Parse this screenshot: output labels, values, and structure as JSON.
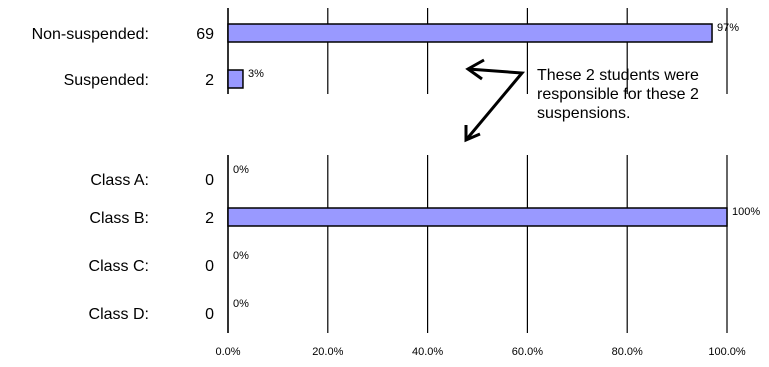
{
  "chart_data": {
    "type": "bar",
    "orientation": "horizontal",
    "categories": [
      "Non-suspended:",
      "Suspended:",
      "Class A:",
      "Class B:",
      "Class C:",
      "Class D:"
    ],
    "counts": [
      "69",
      "2",
      "0",
      "2",
      "0",
      "0"
    ],
    "values": [
      97,
      3,
      0,
      100,
      0,
      0
    ],
    "value_labels": [
      "97%",
      "3%",
      "0%",
      "100%",
      "0%",
      "0%"
    ],
    "xlim": [
      0,
      100
    ],
    "x_ticks": [
      "0.0%",
      "20.0%",
      "40.0%",
      "60.0%",
      "80.0%",
      "100.0%"
    ],
    "grid": "vertical",
    "bar_color": "#9999ff",
    "annotation": {
      "lines": [
        "These 2 students were",
        "responsible for these 2",
        "suspensions."
      ]
    }
  }
}
